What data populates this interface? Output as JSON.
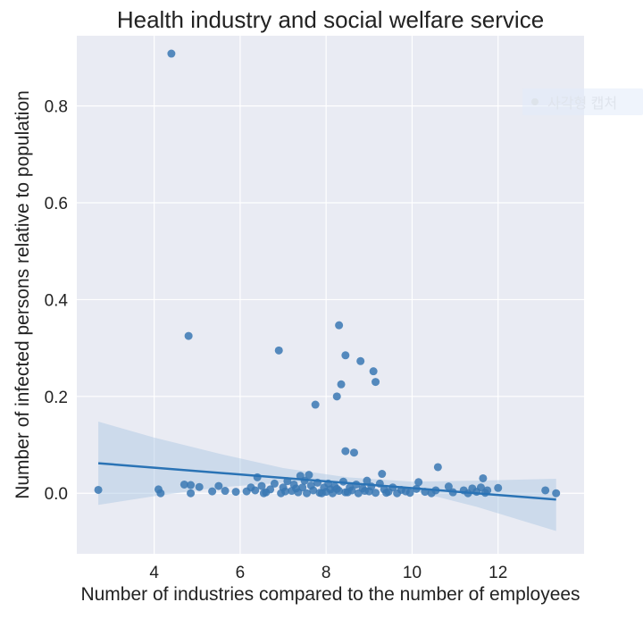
{
  "chart_data": {
    "type": "scatter",
    "title": "Health industry and social welfare service",
    "xlabel": "Number of industries compared to the number of employees",
    "ylabel": "Number of infected persons relative to population",
    "xlim": [
      2.2,
      14.0
    ],
    "ylim": [
      -0.125,
      0.945
    ],
    "xticks": [
      4,
      6,
      8,
      10,
      12
    ],
    "xtick_labels": [
      "4",
      "6",
      "8",
      "10",
      "12"
    ],
    "yticks": [
      0.0,
      0.2,
      0.4,
      0.6,
      0.8
    ],
    "ytick_labels": [
      "0.0",
      "0.2",
      "0.4",
      "0.6",
      "0.8"
    ],
    "grid": true,
    "points": [
      {
        "x": 4.4,
        "y": 0.908
      },
      {
        "x": 4.8,
        "y": 0.325
      },
      {
        "x": 6.9,
        "y": 0.295
      },
      {
        "x": 8.3,
        "y": 0.347
      },
      {
        "x": 8.45,
        "y": 0.285
      },
      {
        "x": 8.8,
        "y": 0.273
      },
      {
        "x": 9.1,
        "y": 0.252
      },
      {
        "x": 9.15,
        "y": 0.23
      },
      {
        "x": 8.35,
        "y": 0.225
      },
      {
        "x": 8.25,
        "y": 0.2
      },
      {
        "x": 7.75,
        "y": 0.183
      },
      {
        "x": 8.45,
        "y": 0.087
      },
      {
        "x": 8.65,
        "y": 0.084
      },
      {
        "x": 10.6,
        "y": 0.054
      },
      {
        "x": 9.3,
        "y": 0.04
      },
      {
        "x": 7.6,
        "y": 0.038
      },
      {
        "x": 7.4,
        "y": 0.036
      },
      {
        "x": 6.4,
        "y": 0.033
      },
      {
        "x": 11.65,
        "y": 0.031
      },
      {
        "x": 2.7,
        "y": 0.007
      },
      {
        "x": 4.1,
        "y": 0.008
      },
      {
        "x": 4.15,
        "y": 0.0
      },
      {
        "x": 4.7,
        "y": 0.018
      },
      {
        "x": 4.85,
        "y": 0.017
      },
      {
        "x": 4.85,
        "y": 0.0
      },
      {
        "x": 5.05,
        "y": 0.013
      },
      {
        "x": 5.35,
        "y": 0.004
      },
      {
        "x": 5.5,
        "y": 0.015
      },
      {
        "x": 5.65,
        "y": 0.005
      },
      {
        "x": 5.9,
        "y": 0.003
      },
      {
        "x": 6.15,
        "y": 0.004
      },
      {
        "x": 6.25,
        "y": 0.012
      },
      {
        "x": 6.35,
        "y": 0.006
      },
      {
        "x": 6.5,
        "y": 0.015
      },
      {
        "x": 6.6,
        "y": 0.002
      },
      {
        "x": 6.7,
        "y": 0.008
      },
      {
        "x": 6.8,
        "y": 0.02
      },
      {
        "x": 6.95,
        "y": 0.0
      },
      {
        "x": 7.0,
        "y": 0.012
      },
      {
        "x": 7.1,
        "y": 0.025
      },
      {
        "x": 7.2,
        "y": 0.005
      },
      {
        "x": 7.25,
        "y": 0.018
      },
      {
        "x": 7.35,
        "y": 0.002
      },
      {
        "x": 7.45,
        "y": 0.012
      },
      {
        "x": 7.5,
        "y": 0.026
      },
      {
        "x": 7.55,
        "y": 0.0
      },
      {
        "x": 7.65,
        "y": 0.016
      },
      {
        "x": 7.7,
        "y": 0.006
      },
      {
        "x": 7.8,
        "y": 0.022
      },
      {
        "x": 7.85,
        "y": 0.001
      },
      {
        "x": 7.95,
        "y": 0.012
      },
      {
        "x": 8.0,
        "y": 0.003
      },
      {
        "x": 8.05,
        "y": 0.02
      },
      {
        "x": 8.1,
        "y": 0.008
      },
      {
        "x": 8.15,
        "y": 0.0
      },
      {
        "x": 8.2,
        "y": 0.014
      },
      {
        "x": 8.3,
        "y": 0.005
      },
      {
        "x": 8.4,
        "y": 0.024
      },
      {
        "x": 8.45,
        "y": 0.002
      },
      {
        "x": 8.55,
        "y": 0.012
      },
      {
        "x": 8.6,
        "y": 0.006
      },
      {
        "x": 8.7,
        "y": 0.018
      },
      {
        "x": 8.75,
        "y": 0.0
      },
      {
        "x": 8.85,
        "y": 0.01
      },
      {
        "x": 8.95,
        "y": 0.026
      },
      {
        "x": 9.0,
        "y": 0.004
      },
      {
        "x": 9.05,
        "y": 0.014
      },
      {
        "x": 9.15,
        "y": 0.001
      },
      {
        "x": 9.25,
        "y": 0.02
      },
      {
        "x": 9.35,
        "y": 0.008
      },
      {
        "x": 9.45,
        "y": 0.003
      },
      {
        "x": 9.55,
        "y": 0.012
      },
      {
        "x": 9.65,
        "y": 0.0
      },
      {
        "x": 9.75,
        "y": 0.007
      },
      {
        "x": 9.85,
        "y": 0.004
      },
      {
        "x": 9.95,
        "y": 0.001
      },
      {
        "x": 10.1,
        "y": 0.009
      },
      {
        "x": 10.15,
        "y": 0.023
      },
      {
        "x": 10.3,
        "y": 0.003
      },
      {
        "x": 10.45,
        "y": 0.0
      },
      {
        "x": 10.55,
        "y": 0.006
      },
      {
        "x": 10.85,
        "y": 0.014
      },
      {
        "x": 10.95,
        "y": 0.002
      },
      {
        "x": 11.2,
        "y": 0.006
      },
      {
        "x": 11.3,
        "y": 0.0
      },
      {
        "x": 11.4,
        "y": 0.01
      },
      {
        "x": 11.5,
        "y": 0.003
      },
      {
        "x": 11.6,
        "y": 0.012
      },
      {
        "x": 11.7,
        "y": 0.001
      },
      {
        "x": 11.75,
        "y": 0.006
      },
      {
        "x": 12.0,
        "y": 0.011
      },
      {
        "x": 13.1,
        "y": 0.006
      },
      {
        "x": 13.35,
        "y": 0.0
      },
      {
        "x": 7.3,
        "y": 0.01
      },
      {
        "x": 7.9,
        "y": 0.0
      },
      {
        "x": 8.5,
        "y": 0.002
      },
      {
        "x": 8.9,
        "y": 0.005
      },
      {
        "x": 9.4,
        "y": 0.001
      },
      {
        "x": 8.25,
        "y": 0.009
      },
      {
        "x": 7.05,
        "y": 0.004
      },
      {
        "x": 6.55,
        "y": 0.0
      }
    ],
    "regression": {
      "x": [
        2.7,
        13.35
      ],
      "y": [
        0.062,
        -0.013
      ]
    },
    "confidence_band": {
      "x": [
        2.7,
        4.0,
        5.5,
        7.0,
        8.5,
        10.0,
        11.5,
        13.35
      ],
      "upper": [
        0.148,
        0.115,
        0.082,
        0.052,
        0.033,
        0.024,
        0.026,
        0.03
      ],
      "lower": [
        -0.024,
        -0.006,
        0.012,
        0.022,
        0.022,
        0.006,
        -0.028,
        -0.078
      ]
    },
    "colors": {
      "point": "#3a78b3",
      "line": "#2a73b5",
      "band": "#a8c6e3",
      "background": "#e9ebf3",
      "grid": "#ffffff"
    }
  },
  "watermark": {
    "label": "사각형 캡처",
    "icon": "dot-icon"
  }
}
